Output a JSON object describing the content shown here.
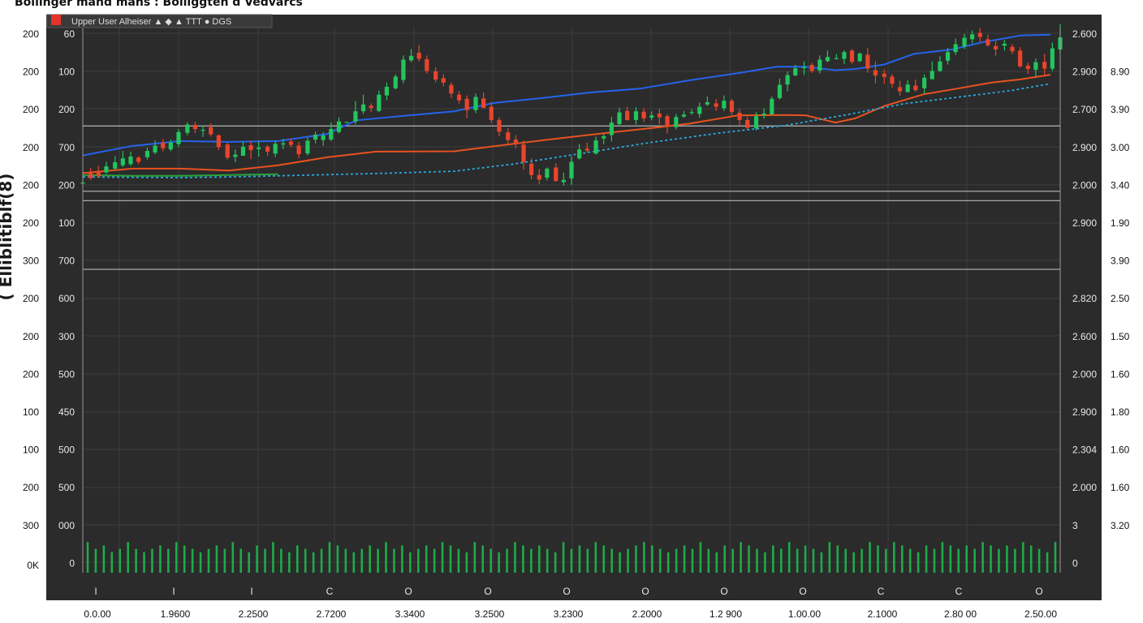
{
  "title": "Bollinger mand mans : Bolliggten d Vedvarcs",
  "ylabel": "( Elliblitiblf(8)",
  "legend": {
    "label": "Upper  User Alheiser  ▲ ◆  ▲  TTT ● DGS",
    "marker_color": "#e5332a"
  },
  "colors": {
    "background": "#2b2b2b",
    "grid": "#3c3c3c",
    "hline": "#a9a9a9",
    "up": "#22c55e",
    "down": "#e8452c",
    "upper_band": "#2563eb",
    "middle_band": "#e8521f",
    "lower_band": "#2aa7df",
    "volume": "#1faa4a"
  },
  "chart_data": {
    "type": "candlestick",
    "title": "Bollinger mand mans : Bolliggten d Vedvarcs",
    "ylabel": "( Elliblitiblf(8)",
    "ylim": [
      0,
      100
    ],
    "grid": true,
    "legend_position": "top-left",
    "x_tick_labels": [
      "0.0.00",
      "1.9600",
      "2.2500",
      "2.7200",
      "3.3400",
      "3.2500",
      "3.2300",
      "2.2000",
      "1.2 900",
      "1.00.00",
      "2.1000",
      "2.80 00",
      "2.50.00"
    ],
    "x_axis_letters": [
      "I",
      "I",
      "I",
      "C",
      "O",
      "O",
      "O",
      "O",
      "O",
      "O",
      "C",
      "C",
      "O"
    ],
    "left_outer_ticks": [
      "200",
      "200",
      "200",
      "200",
      "200",
      "200",
      "300",
      "200",
      "200",
      "200",
      "100",
      "100",
      "200",
      "300",
      "0K"
    ],
    "left_inner_ticks": [
      "60",
      "100",
      "200",
      "700",
      "200",
      "100",
      "700",
      "600",
      "300",
      "500",
      "450",
      "500",
      "500",
      "000",
      "0"
    ],
    "right_inner_ticks": [
      "2.600",
      "2.900",
      "2.700",
      "2.900",
      "2.000",
      "2.900",
      "",
      "2.820",
      "2.600",
      "2.000",
      "2.900",
      "2.304",
      "2.000",
      "3",
      "0"
    ],
    "right_outer_ticks": [
      "",
      "8.90",
      "3.90",
      "3.00",
      "3.40",
      "1.90",
      "3.90",
      "2.50",
      "1.50",
      "1.60",
      "1.80",
      "1.60",
      "1.60",
      "3.20"
    ],
    "horizontal_lines": [
      75.2,
      57.9,
      55.4,
      37.2
    ],
    "series": [
      {
        "name": "Upper",
        "kind": "line",
        "style": "solid",
        "points": [
          [
            0,
            67.4
          ],
          [
            5,
            69.9
          ],
          [
            10,
            71.2
          ],
          [
            15,
            71.0
          ],
          [
            20,
            71.2
          ],
          [
            25,
            73.1
          ],
          [
            28,
            76.7
          ],
          [
            32,
            77.7
          ],
          [
            38,
            79.1
          ],
          [
            42,
            81.3
          ],
          [
            47,
            82.6
          ],
          [
            52,
            84.1
          ],
          [
            57,
            85.1
          ],
          [
            62,
            87.3
          ],
          [
            67,
            89.2
          ],
          [
            71,
            90.9
          ],
          [
            74,
            90.9
          ],
          [
            77,
            90.0
          ],
          [
            79,
            90.3
          ],
          [
            82,
            91.5
          ],
          [
            85,
            94.3
          ],
          [
            89,
            95.5
          ],
          [
            92,
            97.4
          ],
          [
            96,
            99.2
          ],
          [
            99,
            99.4
          ]
        ]
      },
      {
        "name": "Middle",
        "kind": "line",
        "style": "solid",
        "points": [
          [
            0,
            62.7
          ],
          [
            5,
            63.9
          ],
          [
            10,
            63.9
          ],
          [
            15,
            63.4
          ],
          [
            20,
            64.8
          ],
          [
            25,
            66.9
          ],
          [
            30,
            68.4
          ],
          [
            38,
            68.5
          ],
          [
            42,
            69.8
          ],
          [
            47,
            71.4
          ],
          [
            52,
            72.9
          ],
          [
            58,
            74.6
          ],
          [
            62,
            75.8
          ],
          [
            67,
            78.0
          ],
          [
            72,
            78.1
          ],
          [
            74,
            78.0
          ],
          [
            77,
            76.1
          ],
          [
            79,
            77.2
          ],
          [
            82,
            80.5
          ],
          [
            86,
            83.6
          ],
          [
            89,
            84.9
          ],
          [
            93,
            86.7
          ],
          [
            96,
            87.6
          ],
          [
            99,
            88.8
          ]
        ]
      },
      {
        "name": "Lower",
        "kind": "line",
        "style": "dashed",
        "points": [
          [
            0,
            61.7
          ],
          [
            5,
            61.6
          ],
          [
            10,
            61.5
          ],
          [
            15,
            61.7
          ],
          [
            20,
            62.0
          ],
          [
            25,
            62.3
          ],
          [
            30,
            62.6
          ],
          [
            38,
            63.2
          ],
          [
            44,
            65.1
          ],
          [
            50,
            67.5
          ],
          [
            58,
            70.8
          ],
          [
            65,
            73.3
          ],
          [
            72,
            75.4
          ],
          [
            78,
            78.1
          ],
          [
            84,
            81.1
          ],
          [
            90,
            83.0
          ],
          [
            95,
            84.6
          ],
          [
            99,
            86.4
          ]
        ]
      },
      {
        "name": "Signal",
        "kind": "line",
        "style": "solid",
        "color": "#2aa23a",
        "points": [
          [
            0,
            62.2
          ],
          [
            5,
            62.0
          ],
          [
            10,
            62.0
          ],
          [
            15,
            62.2
          ],
          [
            20,
            62.4
          ]
        ]
      }
    ],
    "candles": [
      [
        0.0,
        60.2,
        60.2,
        62.5,
        59.9
      ],
      [
        0.8,
        62.7,
        61.4,
        64.1,
        61.0
      ],
      [
        1.6,
        63.1,
        62.0,
        64.6,
        61.6
      ],
      [
        2.4,
        62.9,
        64.5,
        65.7,
        62.5
      ],
      [
        3.3,
        63.9,
        65.6,
        67.2,
        63.5
      ],
      [
        4.1,
        64.8,
        66.6,
        68.6,
        64.3
      ],
      [
        4.9,
        65.1,
        67.1,
        68.4,
        64.6
      ],
      [
        5.7,
        66.8,
        65.7,
        67.2,
        65.1
      ],
      [
        6.6,
        66.9,
        68.6,
        69.5,
        66.3
      ],
      [
        7.4,
        68.2,
        70.0,
        71.4,
        67.7
      ],
      [
        8.2,
        70.8,
        69.3,
        71.7,
        68.5
      ],
      [
        9.0,
        69.0,
        70.8,
        71.6,
        68.5
      ],
      [
        9.8,
        70.4,
        73.6,
        74.4,
        69.6
      ],
      [
        10.7,
        73.4,
        75.6,
        76.2,
        72.7
      ],
      [
        11.5,
        75.5,
        74.4,
        76.3,
        73.3
      ],
      [
        12.3,
        74.0,
        74.2,
        75.4,
        72.3
      ],
      [
        13.1,
        74.9,
        73.0,
        75.9,
        72.4
      ],
      [
        13.9,
        72.7,
        69.6,
        73.0,
        68.8
      ],
      [
        14.8,
        70.3,
        66.8,
        70.8,
        66.3
      ],
      [
        15.6,
        67.0,
        67.6,
        69.0,
        65.6
      ],
      [
        16.4,
        67.3,
        69.7,
        71.1,
        67.3
      ],
      [
        17.2,
        70.1,
        68.8,
        71.3,
        66.4
      ],
      [
        18.0,
        69.1,
        69.5,
        71.2,
        67.1
      ],
      [
        18.9,
        69.7,
        68.4,
        70.2,
        67.3
      ],
      [
        19.7,
        67.9,
        70.5,
        71.4,
        67.0
      ],
      [
        20.5,
        70.3,
        70.6,
        71.8,
        69.1
      ],
      [
        21.3,
        71.1,
        70.2,
        71.9,
        69.5
      ],
      [
        22.1,
        70.0,
        67.7,
        71.0,
        66.6
      ],
      [
        23.0,
        67.9,
        71.3,
        72.1,
        67.4
      ],
      [
        23.8,
        71.6,
        72.9,
        73.7,
        70.6
      ],
      [
        24.6,
        71.5,
        72.7,
        73.6,
        70.0
      ],
      [
        25.4,
        71.6,
        74.4,
        76.2,
        71.2
      ],
      [
        26.2,
        73.6,
        76.4,
        77.5,
        73.2
      ],
      [
        27.0,
        76.3,
        76.3,
        76.3,
        76.3
      ],
      [
        27.9,
        76.4,
        79.1,
        81.8,
        75.6
      ],
      [
        28.7,
        79.1,
        80.9,
        83.5,
        78.4
      ],
      [
        29.5,
        80.6,
        80.0,
        81.2,
        78.9
      ],
      [
        30.3,
        79.2,
        83.5,
        84.6,
        78.9
      ],
      [
        31.1,
        83.3,
        85.6,
        86.7,
        82.0
      ],
      [
        32.0,
        85.2,
        88.3,
        88.9,
        84.9
      ],
      [
        32.8,
        87.4,
        92.8,
        93.9,
        86.5
      ],
      [
        33.6,
        92.6,
        93.8,
        95.6,
        92.1
      ],
      [
        34.4,
        94.6,
        93.0,
        96.7,
        92.3
      ],
      [
        35.2,
        92.9,
        89.8,
        93.9,
        89.1
      ],
      [
        36.1,
        89.7,
        87.5,
        90.7,
        86.8
      ],
      [
        36.9,
        87.9,
        86.7,
        88.9,
        85.7
      ],
      [
        37.7,
        86.1,
        83.8,
        86.8,
        82.6
      ],
      [
        38.5,
        83.5,
        82.0,
        84.5,
        81.1
      ],
      [
        39.3,
        82.4,
        79.4,
        83.3,
        77.2
      ],
      [
        40.2,
        79.4,
        82.9,
        83.8,
        78.6
      ],
      [
        41.0,
        82.5,
        80.0,
        84.1,
        79.9
      ],
      [
        41.8,
        80.3,
        76.8,
        81.5,
        76.0
      ],
      [
        42.6,
        76.8,
        73.7,
        77.5,
        72.5
      ],
      [
        43.5,
        73.5,
        71.5,
        74.6,
        70.6
      ],
      [
        44.3,
        71.6,
        70.5,
        72.8,
        69.3
      ],
      [
        45.1,
        70.3,
        65.6,
        71.4,
        63.6
      ],
      [
        45.9,
        65.2,
        62.2,
        66.6,
        61.1
      ],
      [
        46.7,
        62.2,
        61.0,
        63.8,
        59.8
      ],
      [
        47.5,
        61.5,
        63.9,
        64.2,
        60.8
      ],
      [
        48.4,
        64.2,
        60.6,
        65.3,
        60.5
      ],
      [
        49.2,
        60.3,
        60.9,
        62.8,
        59.4
      ],
      [
        50.0,
        61.3,
        65.7,
        67.1,
        59.6
      ],
      [
        50.8,
        66.6,
        69.0,
        70.4,
        66.3
      ],
      [
        51.6,
        69.2,
        68.7,
        70.8,
        68.2
      ],
      [
        52.5,
        67.9,
        71.4,
        72.4,
        67.6
      ],
      [
        53.3,
        71.9,
        72.5,
        73.2,
        70.4
      ],
      [
        54.1,
        72.8,
        76.1,
        77.6,
        71.1
      ],
      [
        54.9,
        75.7,
        78.8,
        80.1,
        75.1
      ],
      [
        55.7,
        79.2,
        76.8,
        80.3,
        76.6
      ],
      [
        56.6,
        76.8,
        79.1,
        80.2,
        75.6
      ],
      [
        57.4,
        79.0,
        77.2,
        80.0,
        76.2
      ],
      [
        58.2,
        77.4,
        78.0,
        79.1,
        76.7
      ],
      [
        59.0,
        78.5,
        77.5,
        79.7,
        75.6
      ],
      [
        59.8,
        77.8,
        75.1,
        78.4,
        73.2
      ],
      [
        60.7,
        74.9,
        77.6,
        78.4,
        74.3
      ],
      [
        61.5,
        77.7,
        78.2,
        79.2,
        77.4
      ],
      [
        62.3,
        78.8,
        78.9,
        79.7,
        78.2
      ],
      [
        63.1,
        78.4,
        80.3,
        81.4,
        77.4
      ],
      [
        63.9,
        80.9,
        81.5,
        83.0,
        80.5
      ],
      [
        64.8,
        81.2,
        80.3,
        82.3,
        79.2
      ],
      [
        65.6,
        79.9,
        81.9,
        83.3,
        79.2
      ],
      [
        66.4,
        81.9,
        78.9,
        82.4,
        78.1
      ],
      [
        67.2,
        78.7,
        76.8,
        79.7,
        75.4
      ],
      [
        68.0,
        76.8,
        74.7,
        77.7,
        74.3
      ],
      [
        68.9,
        74.6,
        77.8,
        78.9,
        74.0
      ],
      [
        69.7,
        78.1,
        78.5,
        79.9,
        77.1
      ],
      [
        70.5,
        78.3,
        82.4,
        83.0,
        78.2
      ],
      [
        71.3,
        82.6,
        86.1,
        87.8,
        82.2
      ],
      [
        72.1,
        86.2,
        88.7,
        89.7,
        84.4
      ],
      [
        72.9,
        88.6,
        90.5,
        91.4,
        88.4
      ],
      [
        73.8,
        90.6,
        90.8,
        92.3,
        88.7
      ],
      [
        74.6,
        91.4,
        89.8,
        92.0,
        89.3
      ],
      [
        75.4,
        89.9,
        92.8,
        93.9,
        89.1
      ],
      [
        76.2,
        92.4,
        93.5,
        95.2,
        92.1
      ],
      [
        77.1,
        93.0,
        93.2,
        94.3,
        92.8
      ],
      [
        77.9,
        93.0,
        94.8,
        95.3,
        91.6
      ],
      [
        78.7,
        95.2,
        92.2,
        95.6,
        91.7
      ],
      [
        79.5,
        92.4,
        94.4,
        94.7,
        92.1
      ],
      [
        80.3,
        94.1,
        90.4,
        95.9,
        89.3
      ],
      [
        81.1,
        90.0,
        88.6,
        92.3,
        86.5
      ],
      [
        82.0,
        89.1,
        88.2,
        90.2,
        86.4
      ],
      [
        82.8,
        88.3,
        86.4,
        89.0,
        85.4
      ],
      [
        83.6,
        85.5,
        84.4,
        87.2,
        83.2
      ],
      [
        84.4,
        84.2,
        86.2,
        87.4,
        84.1
      ],
      [
        85.2,
        85.9,
        84.7,
        87.5,
        84.3
      ],
      [
        86.1,
        85.2,
        88.0,
        88.9,
        83.8
      ],
      [
        86.9,
        87.6,
        89.8,
        92.3,
        87.8
      ],
      [
        87.7,
        89.8,
        92.3,
        93.7,
        89.5
      ],
      [
        88.5,
        92.5,
        94.8,
        95.9,
        91.5
      ],
      [
        89.3,
        94.8,
        96.9,
        98.4,
        94.0
      ],
      [
        90.2,
        96.3,
        98.6,
        99.6,
        95.6
      ],
      [
        91.0,
        98.2,
        99.5,
        100.5,
        97.1
      ],
      [
        91.8,
        99.9,
        98.8,
        101.2,
        97.5
      ],
      [
        92.6,
        98.2,
        96.6,
        99.4,
        96.2
      ],
      [
        93.4,
        96.4,
        95.5,
        97.8,
        93.8
      ],
      [
        94.3,
        96.5,
        97.0,
        98.0,
        95.2
      ],
      [
        95.1,
        96.2,
        95.0,
        96.9,
        94.3
      ],
      [
        95.9,
        95.2,
        91.0,
        96.1,
        90.6
      ],
      [
        96.7,
        91.2,
        90.3,
        92.0,
        89.0
      ],
      [
        97.5,
        90.1,
        92.1,
        93.1,
        88.3
      ],
      [
        98.4,
        92.2,
        90.4,
        94.3,
        88.8
      ],
      [
        99.2,
        90.4,
        95.8,
        97.3,
        89.8
      ],
      [
        100.0,
        95.5,
        98.7,
        102.2,
        94.5
      ]
    ],
    "volume": [
      9,
      7,
      8,
      6,
      7,
      9,
      7,
      6,
      7,
      8,
      7,
      9,
      8,
      7,
      6,
      7,
      8,
      7,
      9,
      7,
      6,
      8,
      7,
      9,
      7,
      6,
      8,
      7,
      6,
      7,
      9,
      8,
      7,
      6,
      7,
      8,
      7,
      9,
      7,
      8,
      6,
      7,
      8,
      7,
      9,
      8,
      7,
      6,
      9,
      8,
      7,
      6,
      7,
      9,
      8,
      7,
      8,
      7,
      6,
      9,
      7,
      8,
      7,
      9,
      8,
      7,
      6,
      7,
      8,
      9,
      8,
      7,
      6,
      7,
      8,
      7,
      9,
      7,
      6,
      8,
      7,
      9,
      8,
      7,
      6,
      8,
      7,
      9,
      7,
      8,
      7,
      6,
      9,
      8,
      7,
      6,
      7,
      9,
      8,
      7,
      9,
      8,
      7,
      6,
      8,
      7,
      9,
      8,
      7,
      8,
      7,
      9,
      8,
      7,
      8,
      7,
      9,
      8,
      7,
      6,
      9
    ]
  }
}
